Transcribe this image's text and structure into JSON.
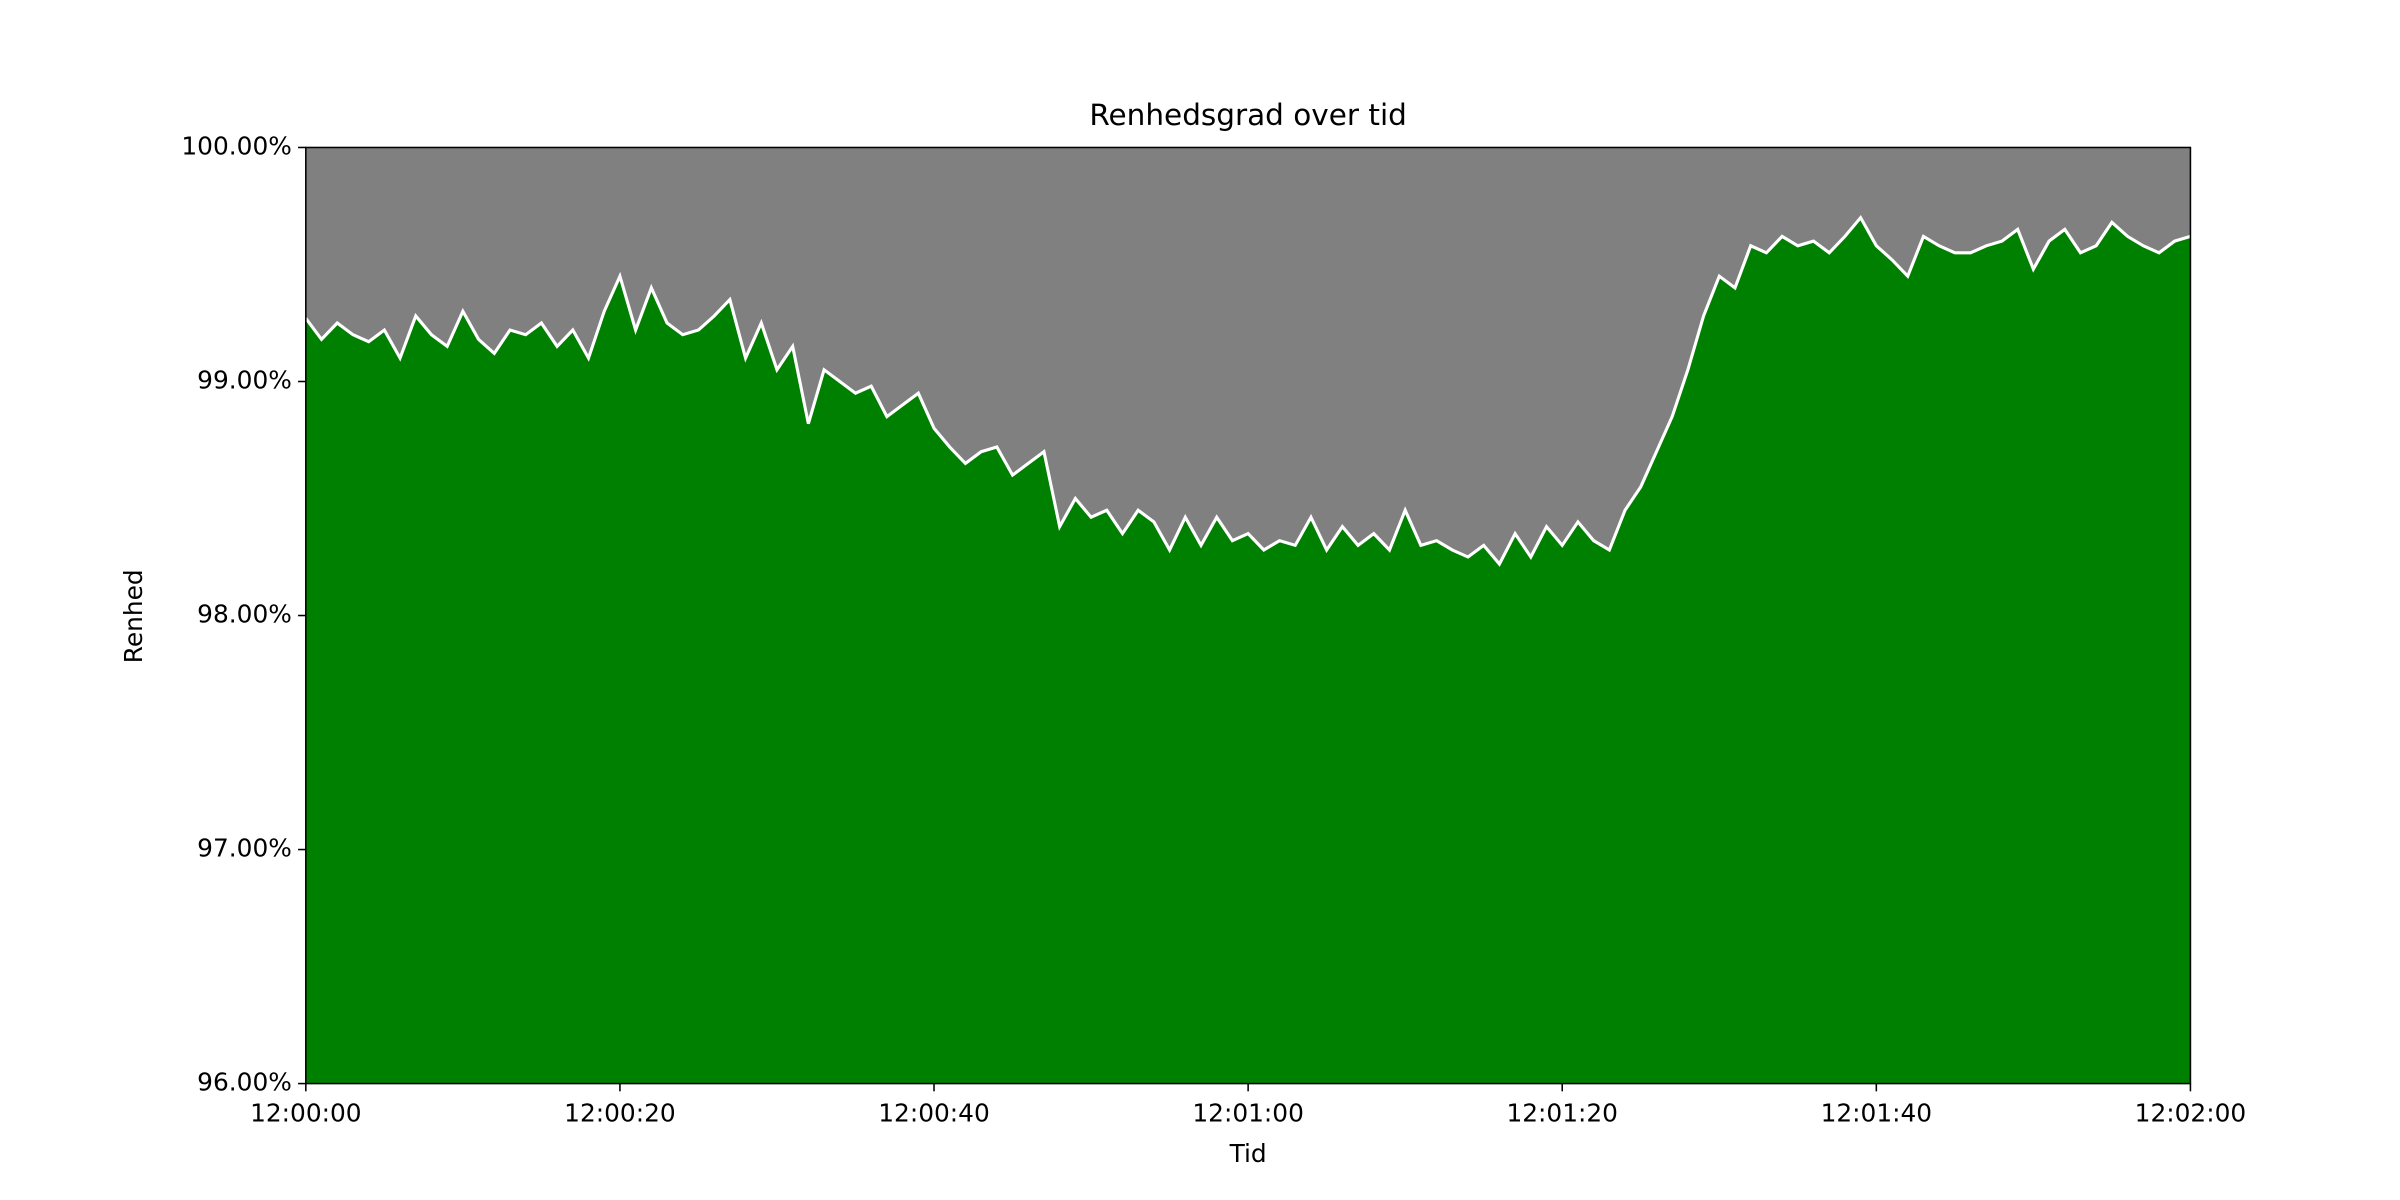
{
  "chart_data": {
    "type": "area",
    "title": "Renhedsgrad over tid",
    "x_label": "Tid",
    "y_label": "Renhed",
    "x": [
      "12:00:00",
      "12:00:01",
      "12:00:02",
      "12:00:03",
      "12:00:04",
      "12:00:05",
      "12:00:06",
      "12:00:07",
      "12:00:08",
      "12:00:09",
      "12:00:10",
      "12:00:11",
      "12:00:12",
      "12:00:13",
      "12:00:14",
      "12:00:15",
      "12:00:16",
      "12:00:17",
      "12:00:18",
      "12:00:19",
      "12:00:20",
      "12:00:21",
      "12:00:22",
      "12:00:23",
      "12:00:24",
      "12:00:25",
      "12:00:26",
      "12:00:27",
      "12:00:28",
      "12:00:29",
      "12:00:30",
      "12:00:31",
      "12:00:32",
      "12:00:33",
      "12:00:34",
      "12:00:35",
      "12:00:36",
      "12:00:37",
      "12:00:38",
      "12:00:39",
      "12:00:40",
      "12:00:41",
      "12:00:42",
      "12:00:43",
      "12:00:44",
      "12:00:45",
      "12:00:46",
      "12:00:47",
      "12:00:48",
      "12:00:49",
      "12:00:50",
      "12:00:51",
      "12:00:52",
      "12:00:53",
      "12:00:54",
      "12:00:55",
      "12:00:56",
      "12:00:57",
      "12:00:58",
      "12:00:59",
      "12:01:00",
      "12:01:01",
      "12:01:02",
      "12:01:03",
      "12:01:04",
      "12:01:05",
      "12:01:06",
      "12:01:07",
      "12:01:08",
      "12:01:09",
      "12:01:10",
      "12:01:11",
      "12:01:12",
      "12:01:13",
      "12:01:14",
      "12:01:15",
      "12:01:16",
      "12:01:17",
      "12:01:18",
      "12:01:19",
      "12:01:20",
      "12:01:21",
      "12:01:22",
      "12:01:23",
      "12:01:24",
      "12:01:25",
      "12:01:26",
      "12:01:27",
      "12:01:28",
      "12:01:29",
      "12:01:30",
      "12:01:31",
      "12:01:32",
      "12:01:33",
      "12:01:34",
      "12:01:35",
      "12:01:36",
      "12:01:37",
      "12:01:38",
      "12:01:39",
      "12:01:40",
      "12:01:41",
      "12:01:42",
      "12:01:43",
      "12:01:44",
      "12:01:45",
      "12:01:46",
      "12:01:47",
      "12:01:48",
      "12:01:49",
      "12:01:50",
      "12:01:51",
      "12:01:52",
      "12:01:53",
      "12:01:54",
      "12:01:55",
      "12:01:56",
      "12:01:57",
      "12:01:58",
      "12:01:59",
      "12:02:00"
    ],
    "values": [
      99.27,
      99.18,
      99.25,
      99.2,
      99.17,
      99.22,
      99.1,
      99.28,
      99.2,
      99.15,
      99.3,
      99.18,
      99.12,
      99.22,
      99.2,
      99.25,
      99.15,
      99.22,
      99.1,
      99.3,
      99.45,
      99.22,
      99.4,
      99.25,
      99.2,
      99.22,
      99.28,
      99.35,
      99.1,
      99.25,
      99.05,
      99.15,
      98.82,
      99.05,
      99.0,
      98.95,
      98.98,
      98.85,
      98.9,
      98.95,
      98.8,
      98.72,
      98.65,
      98.7,
      98.72,
      98.6,
      98.65,
      98.7,
      98.38,
      98.5,
      98.42,
      98.45,
      98.35,
      98.45,
      98.4,
      98.28,
      98.42,
      98.3,
      98.42,
      98.32,
      98.35,
      98.28,
      98.32,
      98.3,
      98.42,
      98.28,
      98.38,
      98.3,
      98.35,
      98.28,
      98.45,
      98.3,
      98.32,
      98.28,
      98.25,
      98.3,
      98.22,
      98.35,
      98.25,
      98.38,
      98.3,
      98.4,
      98.32,
      98.28,
      98.45,
      98.55,
      98.7,
      98.85,
      99.05,
      99.28,
      99.45,
      99.4,
      99.58,
      99.55,
      99.62,
      99.58,
      99.6,
      99.55,
      99.62,
      99.7,
      99.58,
      99.52,
      99.45,
      99.62,
      99.58,
      99.55,
      99.55,
      99.58,
      99.6,
      99.65,
      99.48,
      99.6,
      99.65,
      99.55,
      99.58,
      99.68,
      99.62,
      99.58,
      99.55,
      99.6,
      99.62
    ],
    "fill_color": "#008000",
    "line_color": "#ffffff",
    "plot_background": "#808080",
    "xlim": [
      "12:00:00",
      "12:02:00"
    ],
    "xticks": [
      "12:00:00",
      "12:00:20",
      "12:00:40",
      "12:01:00",
      "12:01:20",
      "12:01:40",
      "12:02:00"
    ],
    "ylim": [
      96,
      100
    ],
    "yticks": [
      {
        "value": 96,
        "label": "96.00%"
      },
      {
        "value": 97,
        "label": "97.00%"
      },
      {
        "value": 98,
        "label": "98.00%"
      },
      {
        "value": 99,
        "label": "99.00%"
      },
      {
        "value": 100,
        "label": "100.00%"
      }
    ]
  }
}
